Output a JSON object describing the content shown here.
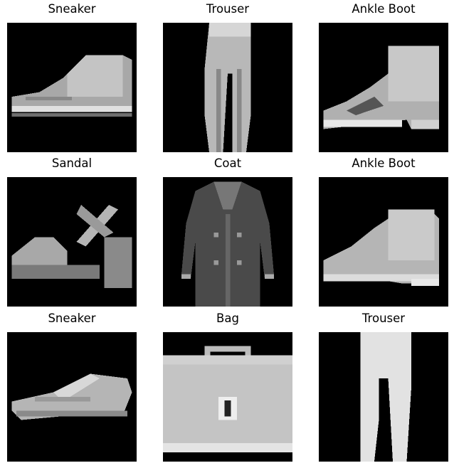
{
  "items": [
    {
      "label": "Sneaker",
      "item": "sneaker"
    },
    {
      "label": "Trouser",
      "item": "trouser"
    },
    {
      "label": "Ankle Boot",
      "item": "ankle-boot"
    },
    {
      "label": "Sandal",
      "item": "sandal"
    },
    {
      "label": "Coat",
      "item": "coat"
    },
    {
      "label": "Ankle Boot",
      "item": "ankle-boot"
    },
    {
      "label": "Sneaker",
      "item": "sneaker"
    },
    {
      "label": "Bag",
      "item": "bag"
    },
    {
      "label": "Trouser",
      "item": "trouser"
    }
  ]
}
